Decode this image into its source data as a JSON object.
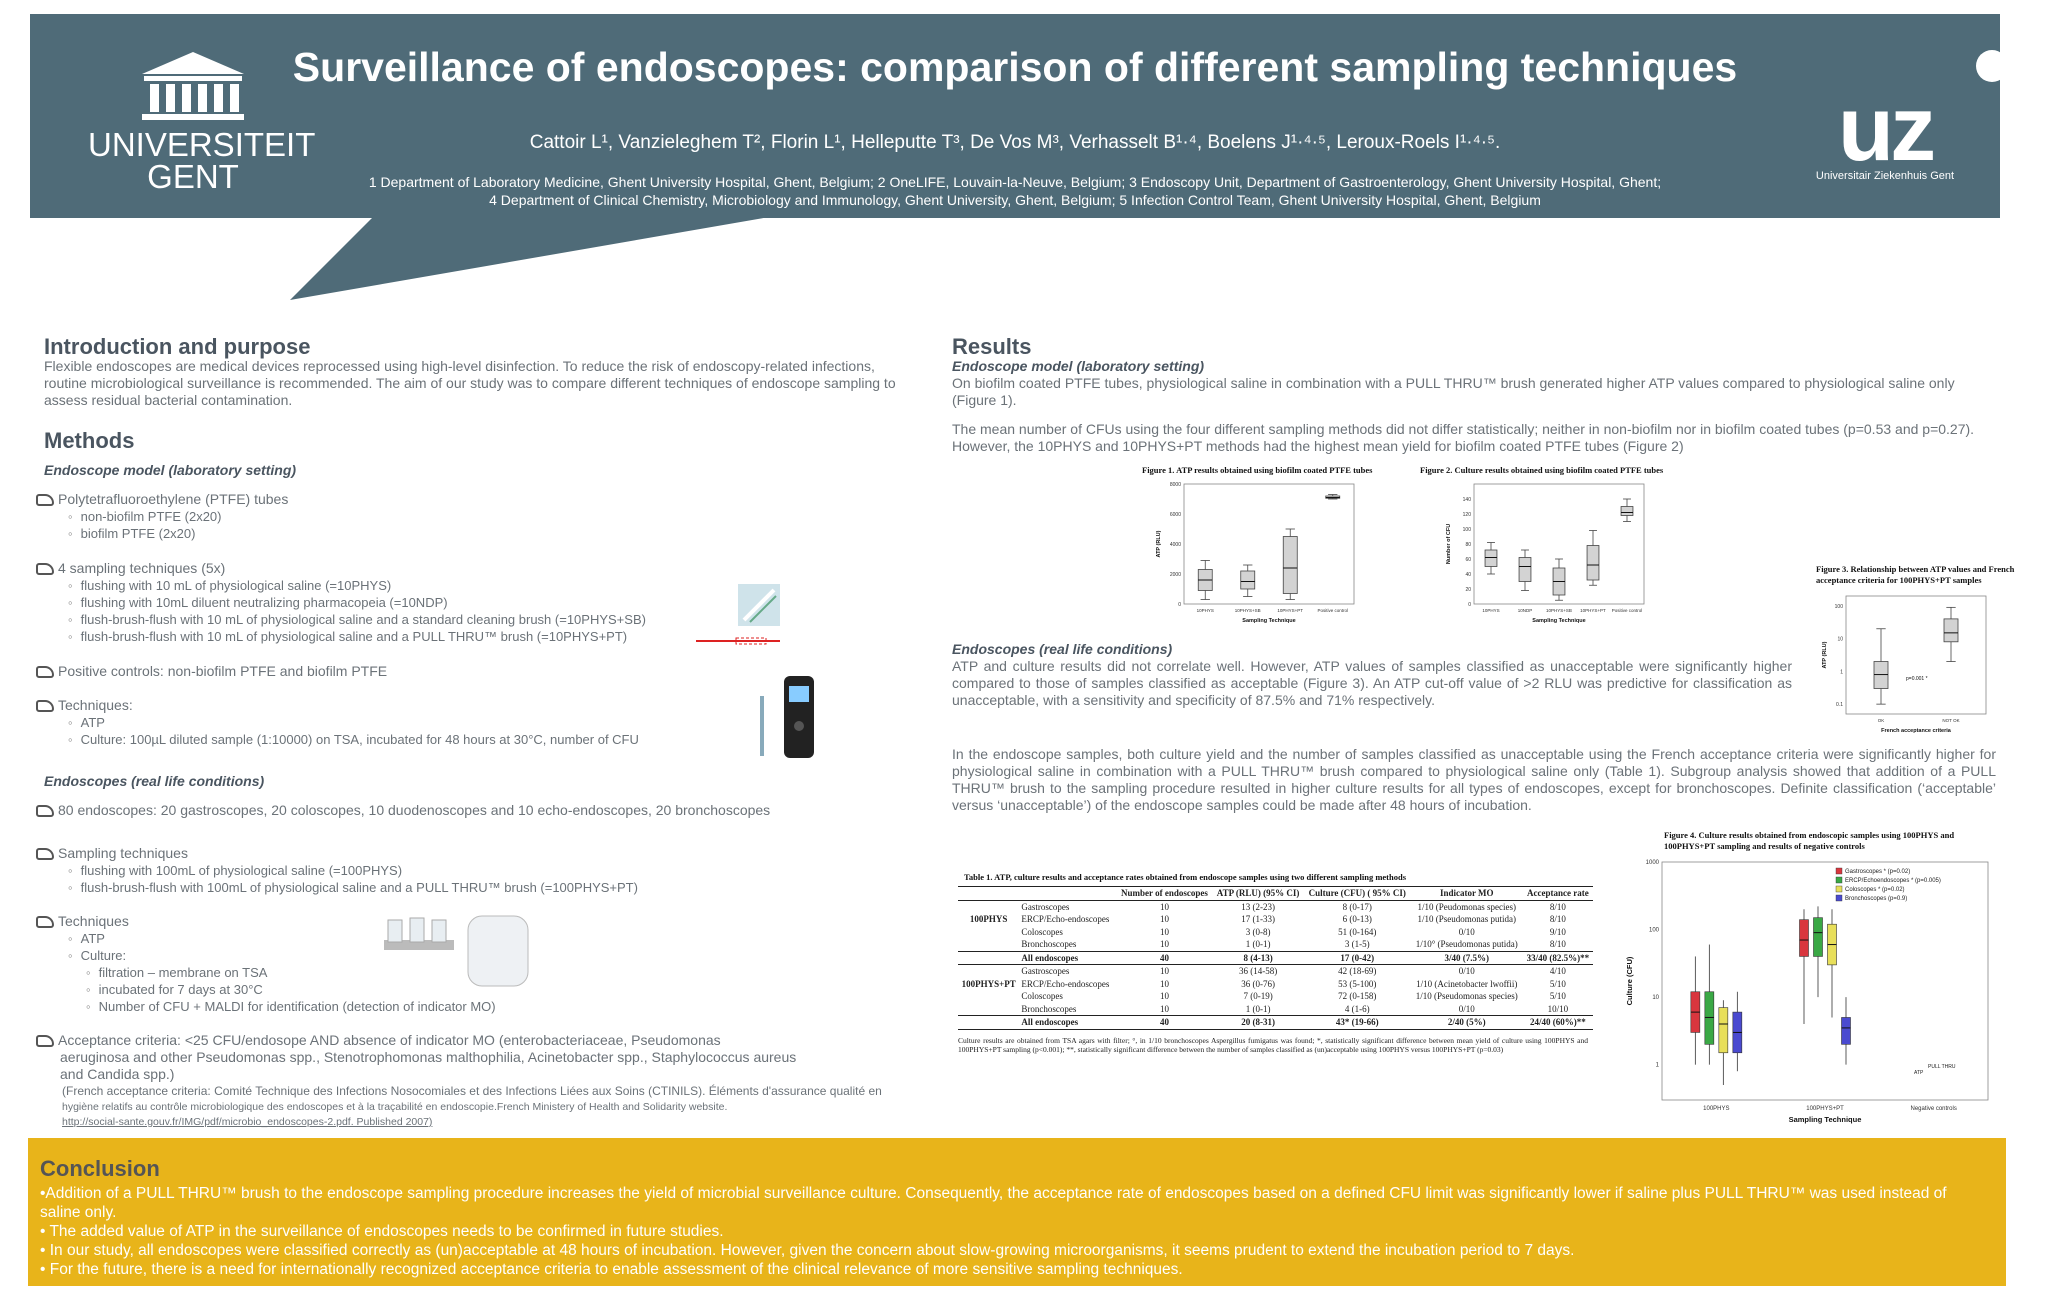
{
  "header": {
    "title": "Surveillance of endoscopes: comparison of different sampling techniques",
    "authors": "Cattoir L¹, Vanzieleghem T², Florin L¹, Helleputte T³, De Vos M³, Verhasselt B¹·⁴, Boelens J¹·⁴·⁵, Leroux-Roels I¹·⁴·⁵.",
    "affiliation_1": "1 Department of Laboratory Medicine, Ghent University Hospital, Ghent, Belgium; 2 OneLIFE, Louvain-la-Neuve, Belgium; 3 Endoscopy Unit, Department of Gastroenterology, Ghent University Hospital, Ghent;",
    "affiliation_2": "4 Department of Clinical Chemistry, Microbiology and Immunology, Ghent University, Ghent, Belgium; 5 Infection Control Team, Ghent University Hospital, Ghent, Belgium",
    "logo_left_line1": "UNIVERSITEIT",
    "logo_left_line2": "GENT",
    "logo_right_mark": "uz",
    "logo_right_text": "Universitair Ziekenhuis Gent",
    "bg_color": "#4f6b78"
  },
  "intro": {
    "title": "Introduction and purpose",
    "text": "Flexible endoscopes are medical devices reprocessed using high-level disinfection. To reduce the risk of endoscopy-related infections, routine microbiological surveillance is recommended. The aim of our study was to compare different techniques of endoscope sampling to assess residual bacterial contamination."
  },
  "methods": {
    "title": "Methods",
    "lab_subtitle": "Endoscope model (laboratory setting)",
    "ptfe": "Polytetrafluoroethylene (PTFE) tubes",
    "ptfe_1": "non-biofilm PTFE (2x20)",
    "ptfe_2": "biofilm PTFE (2x20)",
    "tech4": "4 sampling techniques (5x)",
    "tech4_1": "flushing with 10 mL of physiological saline (=10PHYS)",
    "tech4_2": "flushing with 10mL diluent neutralizing pharmacopeia (=10NDP)",
    "tech4_3": "flush-brush-flush with 10 mL of physiological saline and a standard cleaning brush (=10PHYS+SB)",
    "tech4_4": "flush-brush-flush with 10 mL of physiological saline  and a PULL THRU™ brush (=10PHYS+PT)",
    "pos": "Positive controls: non-biofilm PTFE and biofilm PTFE",
    "techniques": "Techniques:",
    "techniques_1": "ATP",
    "techniques_2": "Culture: 100µL diluted sample (1:10000) on TSA, incubated for 48 hours at 30°C, number of CFU",
    "real_subtitle": "Endoscopes (real life conditions)",
    "endoscopes": "80 endoscopes: 20 gastroscopes, 20 coloscopes, 10 duodenoscopes and 10 echo-endoscopes, 20 bronchoscopes",
    "sampling": "Sampling techniques",
    "sampling_1": "flushing with 100mL of physiological saline (=100PHYS)",
    "sampling_2": "flush-brush-flush with 100mL of physiological saline and a PULL THRU™ brush (=100PHYS+PT)",
    "tech2": "Techniques",
    "tech2_1": "ATP",
    "tech2_2": "Culture:",
    "tech2_3": "filtration – membrane on TSA",
    "tech2_4": "incubated for 7 days at 30°C",
    "tech2_5": "Number of CFU + MALDI for identification (detection of indicator MO)",
    "accept_1": "Acceptance criteria: <25 CFU/endosope AND absence of indicator MO (enterobacteriaceae, Pseudomonas",
    "accept_2": "aeruginosa and other Pseudomonas spp., Stenotrophomonas malthophilia, Acinetobacter spp., Staphylococcus aureus",
    "accept_3": "and Candida spp.)",
    "french_1": "(French acceptance criteria: Comité Technique des Infections Nosocomiales et des Infections Liées aux Soins (CTINILS). Éléments d'assurance qualité en",
    "french_2": "hygiène relatifs au contrôle microbiologique des endoscopes et à la traçabilité en endoscopie.French Ministery of Health and Solidarity website.",
    "french_3": "http://social-sante.gouv.fr/IMG/pdf/microbio_endoscopes-2.pdf. Published 2007)"
  },
  "results": {
    "title": "Results",
    "lab_subtitle": "Endoscope model (laboratory setting)",
    "p1": "On biofilm coated PTFE tubes, physiological saline in combination with a PULL THRU™ brush generated higher ATP values compared to physiological saline only (Figure 1).",
    "p2": "The mean number of CFUs using the four different sampling methods did not differ statistically; neither in non-biofilm nor in biofilm coated tubes (p=0.53 and p=0.27). However, the 10PHYS and 10PHYS+PT methods had the highest mean yield for biofilm coated PTFE tubes (Figure 2)",
    "real_subtitle": "Endoscopes (real life conditions)",
    "p3": "ATP and culture results did not correlate well. However, ATP values of samples classified as unacceptable were significantly higher compared to those of samples classified as acceptable (Figure 3). An ATP cut-off value of >2 RLU was predictive for classification as unacceptable, with a sensitivity and specificity of 87.5% and 71% respectively.",
    "p4": "In the endoscope samples, both culture yield and the number of samples classified as unacceptable using the French acceptance criteria were significantly higher for physiological saline in combination with a PULL THRU™ brush compared to physiological saline only (Table 1). Subgroup analysis showed that addition of a PULL THRU™ brush to the sampling procedure resulted in higher culture results for all types of endoscopes, except for bronchoscopes. Definite classification (‘acceptable’ versus ‘unacceptable’) of the endoscope samples could be made after 48 hours of incubation."
  },
  "figures": {
    "fig1_caption": "Figure 1. ATP results obtained using biofilm coated PTFE tubes",
    "fig1_ylabel": "ATP (RLU)",
    "fig1_xlabel": "Sampling Technique",
    "fig2_caption": "Figure 2. Culture results obtained using biofilm coated PTFE tubes",
    "fig2_ylabel": "Number of CFU",
    "fig2_xlabel": "Sampling Technique",
    "fig3_caption_1": "Figure 3. Relationship between ATP values and French",
    "fig3_caption_2": "acceptance criteria for 100PHYS+PT samples",
    "fig3_ylabel": "ATP (RLU)",
    "fig3_xlabel": "French acceptance criteria",
    "fig3_pvalue": "p=0.001 *",
    "fig4_caption_1": "Figure 4. Culture results obtained from endoscopic samples using 100PHYS and",
    "fig4_caption_2": "100PHYS+PT sampling and results of negative controls",
    "fig4_ylabel": "Culture (CFU)",
    "fig4_xlabel": "Sampling Technique",
    "fig4_legend": [
      "Gastroscopes * (p=0.02)",
      "ERCP/Echoendoscopes * (p=0.005)",
      "Coloscopes * (p=0.02)",
      "Bronchoscopes (p=0.9)"
    ],
    "fig4_legend_colors": [
      "#d9363e",
      "#3aa845",
      "#e8df5a",
      "#4a4ad0"
    ],
    "fig4_groups": [
      "100PHYS",
      "100PHYS+PT",
      "Negative controls"
    ],
    "fig4_note_1": "PULL THRU",
    "fig4_note_2": "ATP"
  },
  "chart_data": [
    {
      "type": "box",
      "title": "Figure 1. ATP results obtained using biofilm coated PTFE tubes",
      "xlabel": "Sampling Technique",
      "ylabel": "ATP (RLU)",
      "categories": [
        "10PHYS",
        "10PHYS+SB",
        "10PHYS+PT",
        "Positive control"
      ],
      "ylim": [
        0,
        8000
      ],
      "yticks": [
        0,
        2000,
        4000,
        6000,
        8000
      ],
      "boxes": [
        {
          "min": 300,
          "q1": 900,
          "median": 1600,
          "q3": 2300,
          "max": 2900
        },
        {
          "min": 500,
          "q1": 1000,
          "median": 1500,
          "q3": 2200,
          "max": 2600
        },
        {
          "min": 300,
          "q1": 700,
          "median": 2400,
          "q3": 4500,
          "max": 5000
        },
        {
          "min": 7000,
          "q1": 7050,
          "median": 7100,
          "q3": 7200,
          "max": 7300
        }
      ]
    },
    {
      "type": "box",
      "title": "Figure 2. Culture results obtained using biofilm coated PTFE tubes",
      "xlabel": "Sampling Technique",
      "ylabel": "Number of CFU",
      "categories": [
        "10PHYS",
        "10NDP",
        "10PHYS+SB",
        "10PHYS+PT",
        "Positive control"
      ],
      "ylim": [
        0,
        160
      ],
      "yticks": [
        0,
        20,
        40,
        60,
        80,
        100,
        120,
        140
      ],
      "boxes": [
        {
          "min": 40,
          "q1": 50,
          "median": 62,
          "q3": 72,
          "max": 82
        },
        {
          "min": 18,
          "q1": 30,
          "median": 50,
          "q3": 62,
          "max": 72
        },
        {
          "min": 5,
          "q1": 12,
          "median": 30,
          "q3": 48,
          "max": 60
        },
        {
          "min": 25,
          "q1": 32,
          "median": 52,
          "q3": 78,
          "max": 98
        },
        {
          "min": 110,
          "q1": 118,
          "median": 122,
          "q3": 130,
          "max": 140
        }
      ]
    },
    {
      "type": "box",
      "title": "Figure 3. Relationship between ATP values and French acceptance criteria for 100PHYS+PT samples",
      "xlabel": "French acceptance criteria",
      "ylabel": "ATP (RLU)",
      "categories": [
        "OK",
        "NOT OK"
      ],
      "scale": "log",
      "boxes": [
        {
          "min": 0.1,
          "q1": 0.3,
          "median": 0.8,
          "q3": 2,
          "max": 20
        },
        {
          "min": 2,
          "q1": 8,
          "median": 15,
          "q3": 40,
          "max": 90
        }
      ]
    },
    {
      "type": "box",
      "title": "Figure 4. Culture results obtained from endoscopic samples using 100PHYS and 100PHYS+PT sampling and results of negative controls",
      "xlabel": "Sampling Technique",
      "ylabel": "Culture (CFU)",
      "scale": "log",
      "categories": [
        "100PHYS",
        "100PHYS+PT",
        "Negative controls"
      ],
      "series": [
        {
          "name": "Gastroscopes * (p=0.02)",
          "boxes": [
            {
              "min": 1,
              "q1": 3,
              "median": 6,
              "q3": 12,
              "max": 40
            },
            {
              "min": 4,
              "q1": 40,
              "median": 70,
              "q3": 140,
              "max": 200
            }
          ]
        },
        {
          "name": "ERCP/Echoendoscopes * (p=0.005)",
          "boxes": [
            {
              "min": 1,
              "q1": 2,
              "median": 5,
              "q3": 12,
              "max": 60
            },
            {
              "min": 10,
              "q1": 40,
              "median": 90,
              "q3": 150,
              "max": 220
            }
          ]
        },
        {
          "name": "Coloscopes * (p=0.02)",
          "boxes": [
            {
              "min": 0.5,
              "q1": 1.5,
              "median": 4,
              "q3": 7,
              "max": 9
            },
            {
              "min": 5,
              "q1": 30,
              "median": 60,
              "q3": 120,
              "max": 200
            }
          ]
        },
        {
          "name": "Bronchoscopes (p=0.9)",
          "boxes": [
            {
              "min": 0.8,
              "q1": 1.5,
              "median": 3,
              "q3": 6,
              "max": 12
            },
            {
              "min": 1,
              "q1": 2,
              "median": 3.5,
              "q3": 5,
              "max": 10
            }
          ]
        }
      ]
    }
  ],
  "table": {
    "caption": "Table 1. ATP, culture results and acceptance rates obtained from endoscope samples using two different sampling methods",
    "headers": [
      "",
      "",
      "Number of endoscopes",
      "ATP (RLU) (95% CI)",
      "Culture (CFU) ( 95% CI)",
      "Indicator MO",
      "Acceptance rate"
    ],
    "groups": [
      {
        "label": "100PHYS",
        "rows": [
          [
            "Gastroscopes",
            "10",
            "13 (2-23)",
            "8 (0-17)",
            "1/10 (Peudomonas species)",
            "8/10"
          ],
          [
            "ERCP/Echo-endoscopes",
            "10",
            "17 (1-33)",
            "6 (0-13)",
            "1/10 (Pseudomonas putida)",
            "8/10"
          ],
          [
            "Coloscopes",
            "10",
            "3 (0-8)",
            "51 (0-164)",
            "0/10",
            "9/10"
          ],
          [
            "Bronchoscopes",
            "10",
            "1 (0-1)",
            "3 (1-5)",
            "1/10° (Pseudomonas putida)",
            "8/10"
          ]
        ],
        "total": [
          "All endoscopes",
          "40",
          "8 (4-13)",
          "17 (0-42)",
          "3/40 (7.5%)",
          "33/40 (82.5%)**"
        ]
      },
      {
        "label": "100PHYS+PT",
        "rows": [
          [
            "Gastroscopes",
            "10",
            "36 (14-58)",
            "42 (18-69)",
            "0/10",
            "4/10"
          ],
          [
            "ERCP/Echo-endoscopes",
            "10",
            "36 (0-76)",
            "53 (5-100)",
            "1/10 (Acinetobacter lwoffii)",
            "5/10"
          ],
          [
            "Coloscopes",
            "10",
            "7 (0-19)",
            "72 (0-158)",
            "1/10 (Pseudomonas species)",
            "5/10"
          ],
          [
            "Bronchoscopes",
            "10",
            "1 (0-1)",
            "4 (1-6)",
            "0/10",
            "10/10"
          ]
        ],
        "total": [
          "All endoscopes",
          "40",
          "20 (8-31)",
          "43* (19-66)",
          "2/40 (5%)",
          "24/40 (60%)**"
        ]
      }
    ],
    "footnote": "Culture results are obtained from TSA agars with filter; °, in 1/10 bronchoscopes Aspergillus fumigatus was found; *, statistically significant difference between mean yield of culture using 100PHYS and 100PHYS+PT sampling (p<0.001); **, statistically significant difference between the number of samples classified as (un)acceptable using 100PHYS versus 100PHYS+PT (p=0.03)"
  },
  "conclusion": {
    "title": "Conclusion",
    "b1": "•Addition of a PULL THRU™ brush to the endoscope sampling procedure increases the yield of microbial surveillance culture. Consequently, the acceptance rate of endoscopes based on a defined CFU limit was significantly lower if saline plus PULL THRU™ was used instead of saline only.",
    "b2": "• The added value of ATP in the surveillance of endoscopes needs to be confirmed in future studies.",
    "b3": "• In our study, all endoscopes were classified correctly as (un)acceptable at 48 hours of incubation. However, given the concern about slow-growing microorganisms, it seems prudent to extend the incubation period to 7 days.",
    "b4": "• For the future, there is a need for internationally recognized acceptance criteria to enable assessment of the clinical relevance of more sensitive sampling techniques.",
    "bg_color": "#e8b41a"
  }
}
